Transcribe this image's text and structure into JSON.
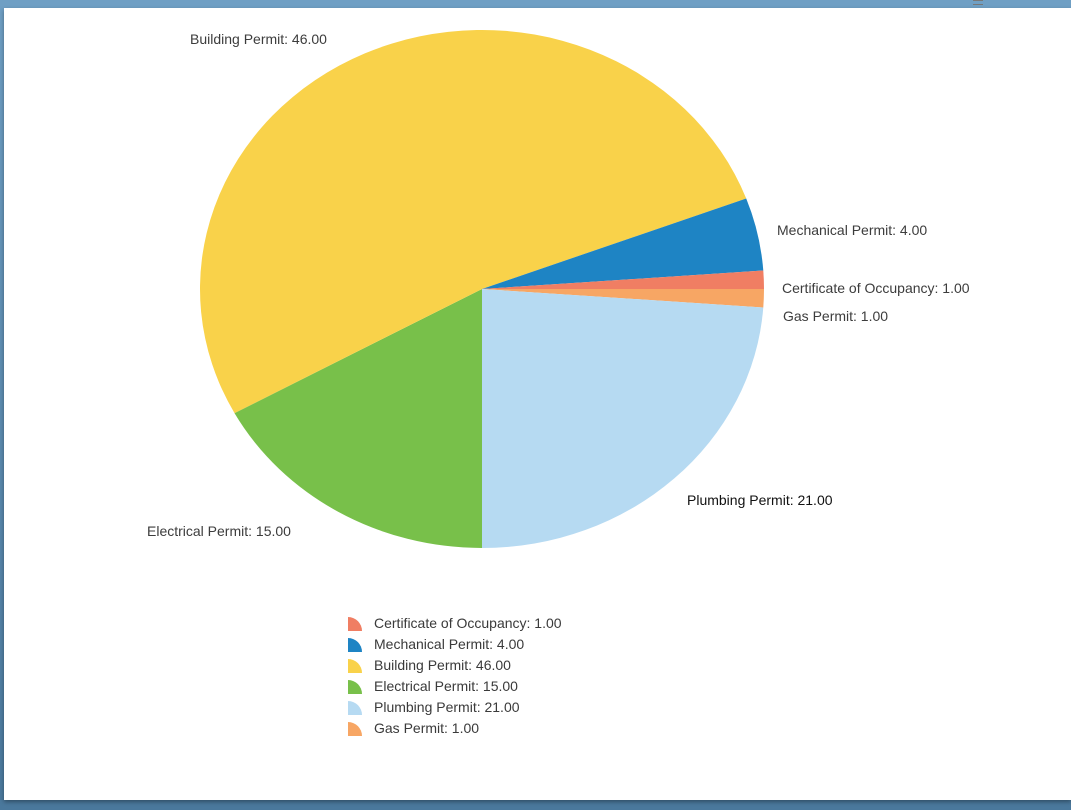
{
  "chart_data": {
    "type": "pie",
    "title": "",
    "slices": [
      {
        "label": "Certificate of Occupancy",
        "value": 1.0,
        "text": "Certificate of Occupancy: 1.00",
        "legend_text": "Certificate of Occupancy: 1.00",
        "color": "#f07e63"
      },
      {
        "label": "Mechanical Permit",
        "value": 4.0,
        "text": "Mechanical Permit: 4.00",
        "legend_text": "Mechanical Permit: 4.00",
        "color": "#1e84c4"
      },
      {
        "label": "Building Permit",
        "value": 46.0,
        "text": "Building Permit: 46.00",
        "legend_text": "Building Permit: 46.00",
        "color": "#f9d24a"
      },
      {
        "label": "Electrical Permit",
        "value": 15.0,
        "text": "Electrical Permit: 15.00",
        "legend_text": "Electrical Permit: 15.00",
        "color": "#78c04a"
      },
      {
        "label": "Plumbing Permit",
        "value": 21.0,
        "text": "Plumbing Permit: 21.00",
        "legend_text": "Plumbing Permit: 21.00",
        "color": "#b6daf2"
      },
      {
        "label": "Gas Permit",
        "value": 1.0,
        "text": "Gas Permit: 1.00",
        "legend_text": "Gas Permit: 1.00",
        "color": "#f7a664"
      }
    ],
    "legend_position": "bottom"
  }
}
